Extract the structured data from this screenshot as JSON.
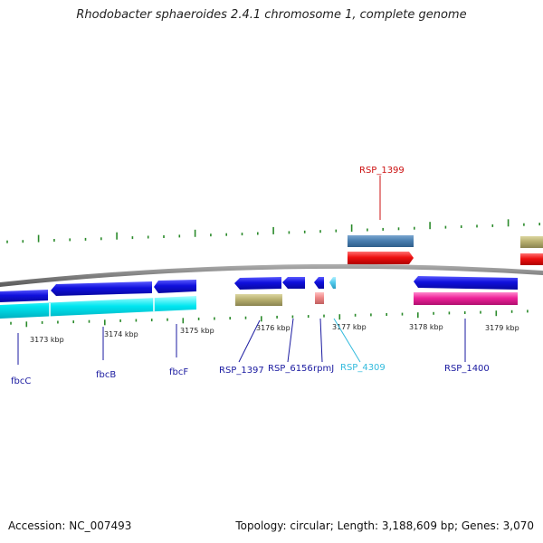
{
  "title": "Rhodobacter sphaeroides 2.4.1 chromosome 1, complete genome",
  "footer": {
    "accession": "Accession: NC_007493",
    "summary": "Topology: circular; Length: 3,188,609 bp; Genes: 3,070"
  },
  "ticks": [
    "3173 kbp",
    "3174 kbp",
    "3175 kbp",
    "3176 kbp",
    "3177 kbp",
    "3178 kbp",
    "3179 kbp"
  ],
  "gene_labels": [
    {
      "name": "fbcC",
      "color": "#1a1aa0"
    },
    {
      "name": "fbcB",
      "color": "#1a1aa0"
    },
    {
      "name": "fbcF",
      "color": "#1a1aa0"
    },
    {
      "name": "RSP_1397",
      "color": "#1a1aa0"
    },
    {
      "name": "RSP_6156",
      "color": "#1a1aa0"
    },
    {
      "name": "rpmJ",
      "color": "#1a1aa0"
    },
    {
      "name": "RSP_4309",
      "color": "#33bbdd"
    },
    {
      "name": "RSP_1400",
      "color": "#1a1aa0"
    },
    {
      "name": "RSP_1399",
      "color": "#cc1111"
    }
  ],
  "colors": {
    "cds_blue": "#1010dd",
    "gene_cyan": "#00e0ee",
    "khaki": "#b8b070",
    "steel_blue": "#4a7fb0",
    "red": "#ee1111",
    "magenta": "#ee2299",
    "pink": "#ee8888",
    "light_blue": "#55ccee",
    "backbone": "#808080",
    "gc_tick": "#2a8a2a",
    "label_dark": "#1a1aa0"
  }
}
